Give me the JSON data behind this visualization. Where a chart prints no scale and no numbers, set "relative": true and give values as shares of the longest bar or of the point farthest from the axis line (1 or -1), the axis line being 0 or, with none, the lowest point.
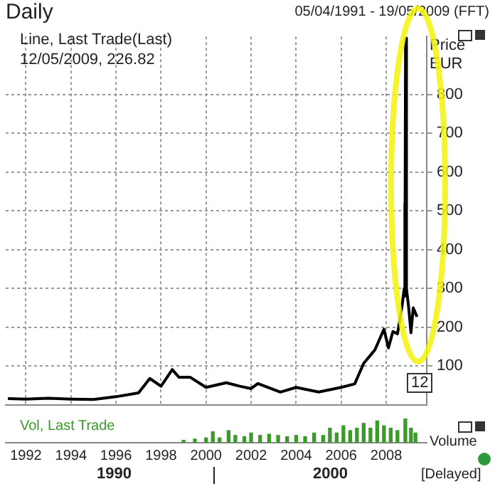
{
  "chart_data": [
    {
      "type": "line",
      "title": "Daily",
      "subtitle": "05/04/1991 - 19/05/2009 (FFT)",
      "ylabel": "Price EUR",
      "annotations": [
        "Line, Last Trade(Last)",
        "12/05/2009, 226.82",
        "12",
        "[Delayed]"
      ],
      "series": [
        {
          "color": "#000000",
          "x": [
            1991.2,
            1992,
            1993,
            1994,
            1995,
            1996,
            1997,
            1997.5,
            1998,
            1998.5,
            1998.8,
            1999.3,
            2000,
            2000.9,
            2001.5,
            2002,
            2002.3,
            2003.3,
            2004,
            2005,
            2006,
            2006.6,
            2007,
            2007.5,
            2007.9,
            2008.1,
            2008.3,
            2008.5,
            2008.7,
            2008.8,
            2008.82,
            2008.84,
            2008.86,
            2008.9,
            2009.0,
            2009.1,
            2009.2,
            2009.37
          ],
          "values": [
            16,
            15,
            17,
            15,
            14,
            21,
            31,
            68,
            48,
            91,
            71,
            71,
            45,
            57,
            48,
            42,
            55,
            33,
            45,
            33,
            45,
            54,
            107,
            142,
            195,
            147,
            189,
            183,
            253,
            300,
            520,
            280,
            946,
            300,
            250,
            186,
            250,
            227
          ]
        }
      ],
      "xlim": [
        1991.1,
        2009.8
      ],
      "xticks": [
        1992,
        1994,
        1996,
        1998,
        2000,
        2002,
        2004,
        2006,
        2008
      ],
      "ylim": [
        0,
        950
      ],
      "yticks": [
        100,
        200,
        300,
        400,
        500,
        600,
        700,
        800
      ],
      "grid": true,
      "tick_labels": "y"
    },
    {
      "type": "bar",
      "relative": true,
      "ylabel": "Volume",
      "annotations": [
        "Vol, Last Trade",
        "1990",
        "2000"
      ],
      "series": [
        {
          "color": "#3a9a2a",
          "x": [
            1999,
            1999.5,
            2000,
            2000.3,
            2000.6,
            2001,
            2001.3,
            2001.7,
            2002,
            2002.4,
            2002.8,
            2003.2,
            2003.6,
            2004,
            2004.4,
            2004.8,
            2005.2,
            2005.5,
            2005.8,
            2006.1,
            2006.4,
            2006.7,
            2007,
            2007.3,
            2007.6,
            2007.9,
            2008.2,
            2008.5,
            2008.85,
            2009.1,
            2009.3
          ],
          "values": [
            0.1,
            0.15,
            0.2,
            0.45,
            0.2,
            0.5,
            0.3,
            0.25,
            0.4,
            0.3,
            0.35,
            0.3,
            0.25,
            0.3,
            0.25,
            0.4,
            0.3,
            0.6,
            0.4,
            0.7,
            0.5,
            0.6,
            0.8,
            0.6,
            0.9,
            0.7,
            0.6,
            0.5,
            1,
            0.6,
            0.4
          ]
        }
      ],
      "xlim": [
        1991.1,
        2009.8
      ],
      "xticks": [
        1992,
        1994,
        1996,
        1998,
        2000,
        2002,
        2004,
        2006,
        2008
      ],
      "tick_labels": "x"
    }
  ]
}
